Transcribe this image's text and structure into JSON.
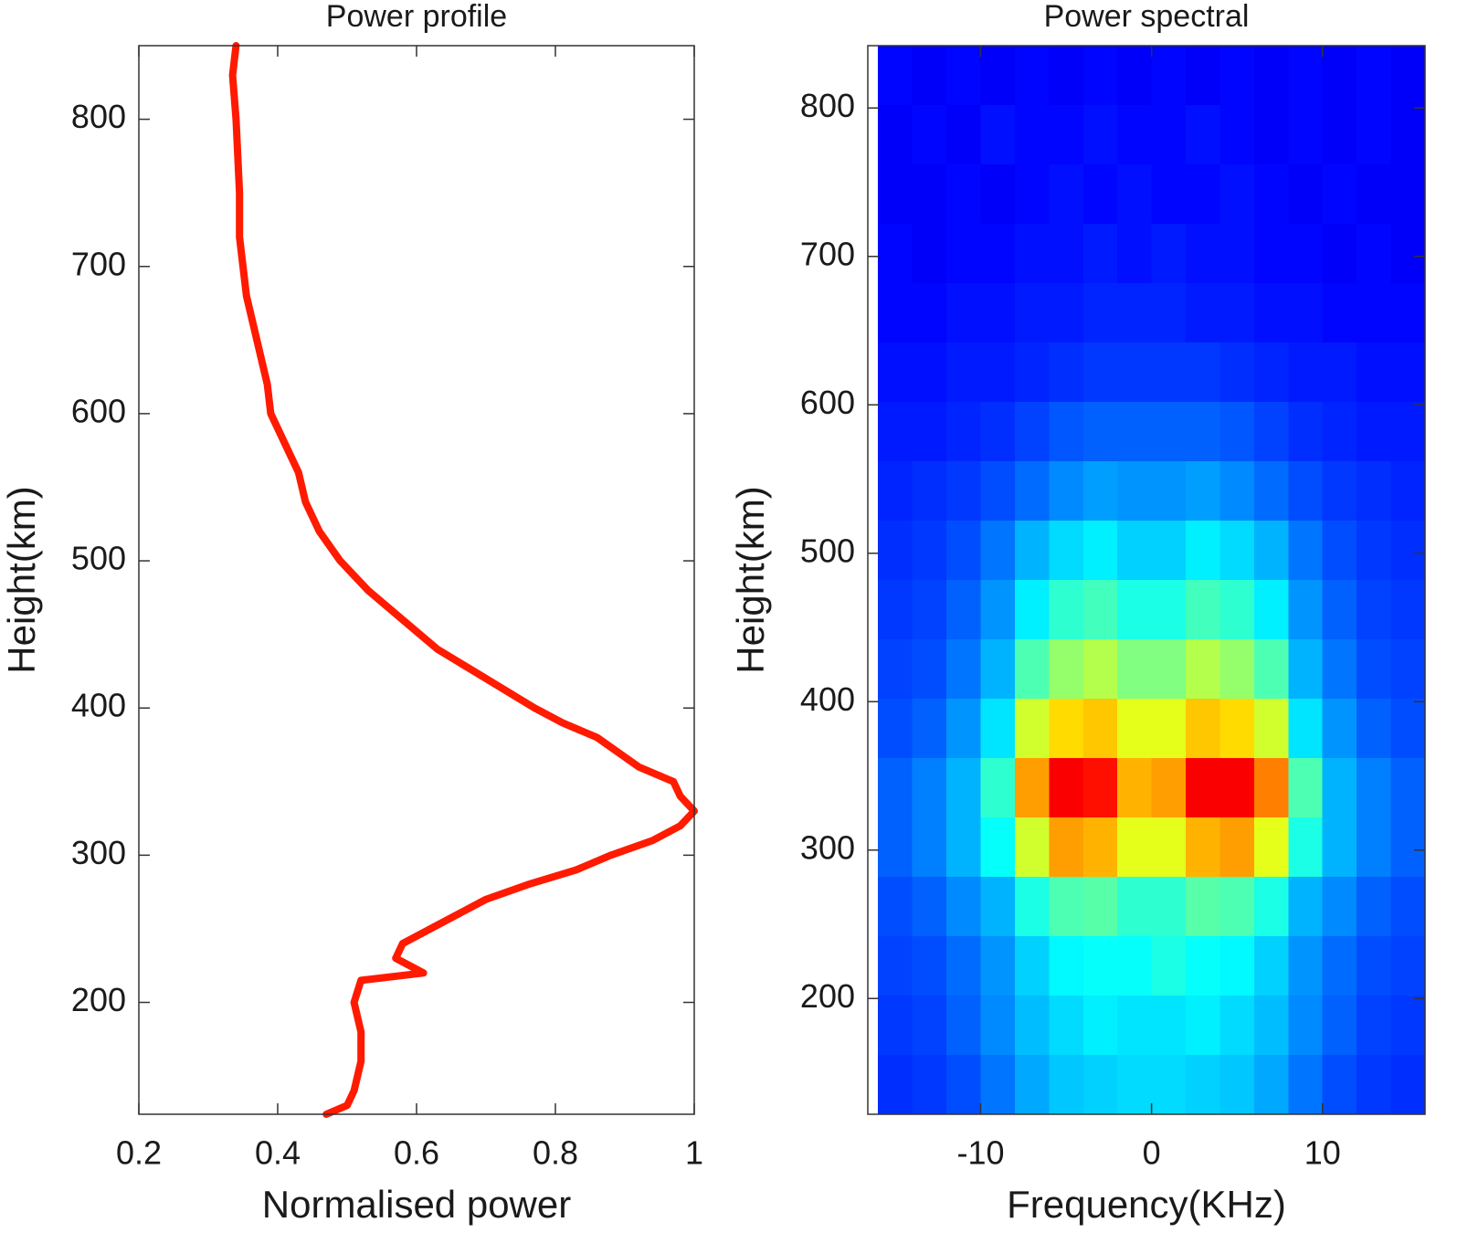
{
  "chart_data": [
    {
      "type": "line",
      "title": "Power profile",
      "x_label": "Normalised power",
      "y_label": "Height(km)",
      "series": [
        {
          "color": "#ff1a00",
          "x": [
            0.34,
            0.335,
            0.34,
            0.345,
            0.345,
            0.35,
            0.355,
            0.37,
            0.385,
            0.39,
            0.41,
            0.43,
            0.44,
            0.46,
            0.49,
            0.53,
            0.58,
            0.63,
            0.7,
            0.77,
            0.81,
            0.86,
            0.92,
            0.97,
            0.98,
            1.0,
            0.98,
            0.94,
            0.88,
            0.83,
            0.76,
            0.7,
            0.66,
            0.62,
            0.58,
            0.57,
            0.61,
            0.52,
            0.51,
            0.52,
            0.52,
            0.51,
            0.5,
            0.47
          ],
          "y": [
            850,
            830,
            800,
            750,
            720,
            700,
            680,
            650,
            620,
            600,
            580,
            560,
            540,
            520,
            500,
            480,
            460,
            440,
            420,
            400,
            390,
            380,
            360,
            350,
            340,
            330,
            320,
            310,
            300,
            290,
            280,
            270,
            260,
            250,
            240,
            230,
            220,
            215,
            200,
            180,
            160,
            140,
            130,
            124
          ]
        }
      ],
      "xlim": [
        0.2,
        1
      ],
      "ylim": [
        124,
        850
      ],
      "xticks": [
        0.2,
        0.4,
        0.6,
        0.8,
        1
      ],
      "yticks": [
        200,
        300,
        400,
        500,
        600,
        700,
        800
      ]
    },
    {
      "type": "heatmap",
      "title": "Power spectral",
      "x_label": "Frequency(KHz)",
      "y_label": "Height(km)",
      "colormap": "jet",
      "zlim": [
        0,
        1
      ],
      "x": [
        -15,
        -13,
        -11,
        -9,
        -7,
        -5,
        -3,
        -1,
        1,
        3,
        5,
        7,
        9,
        11,
        13,
        15
      ],
      "y": [
        822,
        782,
        742,
        702,
        662,
        622,
        582,
        542,
        502,
        462,
        422,
        382,
        342,
        302,
        262,
        222,
        182,
        142
      ],
      "z": [
        [
          0.13,
          0.12,
          0.13,
          0.12,
          0.13,
          0.12,
          0.13,
          0.12,
          0.13,
          0.12,
          0.13,
          0.12,
          0.13,
          0.12,
          0.13,
          0.12
        ],
        [
          0.12,
          0.13,
          0.12,
          0.14,
          0.13,
          0.13,
          0.14,
          0.13,
          0.13,
          0.14,
          0.13,
          0.12,
          0.13,
          0.12,
          0.13,
          0.12
        ],
        [
          0.12,
          0.12,
          0.13,
          0.12,
          0.13,
          0.14,
          0.13,
          0.14,
          0.13,
          0.13,
          0.14,
          0.13,
          0.12,
          0.13,
          0.12,
          0.12
        ],
        [
          0.13,
          0.12,
          0.13,
          0.13,
          0.14,
          0.14,
          0.15,
          0.14,
          0.15,
          0.14,
          0.14,
          0.13,
          0.13,
          0.12,
          0.13,
          0.12
        ],
        [
          0.13,
          0.13,
          0.14,
          0.14,
          0.15,
          0.15,
          0.16,
          0.16,
          0.16,
          0.15,
          0.15,
          0.14,
          0.14,
          0.13,
          0.13,
          0.13
        ],
        [
          0.14,
          0.14,
          0.15,
          0.15,
          0.16,
          0.17,
          0.18,
          0.18,
          0.18,
          0.18,
          0.17,
          0.16,
          0.15,
          0.15,
          0.14,
          0.14
        ],
        [
          0.15,
          0.15,
          0.16,
          0.17,
          0.19,
          0.21,
          0.22,
          0.22,
          0.22,
          0.22,
          0.21,
          0.19,
          0.17,
          0.16,
          0.15,
          0.15
        ],
        [
          0.16,
          0.17,
          0.18,
          0.2,
          0.23,
          0.26,
          0.28,
          0.27,
          0.27,
          0.28,
          0.26,
          0.23,
          0.2,
          0.18,
          0.17,
          0.16
        ],
        [
          0.17,
          0.18,
          0.2,
          0.24,
          0.3,
          0.34,
          0.36,
          0.33,
          0.33,
          0.36,
          0.34,
          0.3,
          0.24,
          0.2,
          0.18,
          0.17
        ],
        [
          0.18,
          0.19,
          0.22,
          0.27,
          0.36,
          0.42,
          0.44,
          0.4,
          0.4,
          0.44,
          0.42,
          0.36,
          0.27,
          0.22,
          0.19,
          0.18
        ],
        [
          0.19,
          0.2,
          0.24,
          0.3,
          0.45,
          0.52,
          0.55,
          0.5,
          0.5,
          0.55,
          0.52,
          0.45,
          0.3,
          0.24,
          0.2,
          0.19
        ],
        [
          0.2,
          0.22,
          0.27,
          0.35,
          0.58,
          0.66,
          0.68,
          0.6,
          0.6,
          0.68,
          0.66,
          0.58,
          0.35,
          0.27,
          0.22,
          0.2
        ],
        [
          0.22,
          0.25,
          0.3,
          0.42,
          0.72,
          0.88,
          0.86,
          0.7,
          0.72,
          0.88,
          0.88,
          0.75,
          0.45,
          0.3,
          0.25,
          0.22
        ],
        [
          0.22,
          0.25,
          0.3,
          0.38,
          0.58,
          0.72,
          0.7,
          0.6,
          0.6,
          0.7,
          0.72,
          0.6,
          0.4,
          0.3,
          0.25,
          0.22
        ],
        [
          0.2,
          0.22,
          0.26,
          0.3,
          0.4,
          0.45,
          0.46,
          0.42,
          0.42,
          0.46,
          0.45,
          0.4,
          0.3,
          0.26,
          0.22,
          0.2
        ],
        [
          0.19,
          0.2,
          0.23,
          0.27,
          0.33,
          0.37,
          0.38,
          0.38,
          0.4,
          0.38,
          0.37,
          0.33,
          0.27,
          0.23,
          0.2,
          0.19
        ],
        [
          0.18,
          0.19,
          0.22,
          0.26,
          0.31,
          0.34,
          0.36,
          0.35,
          0.35,
          0.36,
          0.34,
          0.31,
          0.26,
          0.22,
          0.19,
          0.18
        ],
        [
          0.17,
          0.18,
          0.2,
          0.24,
          0.29,
          0.32,
          0.33,
          0.34,
          0.34,
          0.33,
          0.32,
          0.29,
          0.24,
          0.2,
          0.18,
          0.17
        ]
      ],
      "xlim": [
        -16.6,
        16
      ],
      "ylim": [
        122,
        842
      ],
      "xticks": [
        -10,
        0,
        10
      ],
      "yticks": [
        200,
        300,
        400,
        500,
        600,
        700,
        800
      ]
    }
  ]
}
